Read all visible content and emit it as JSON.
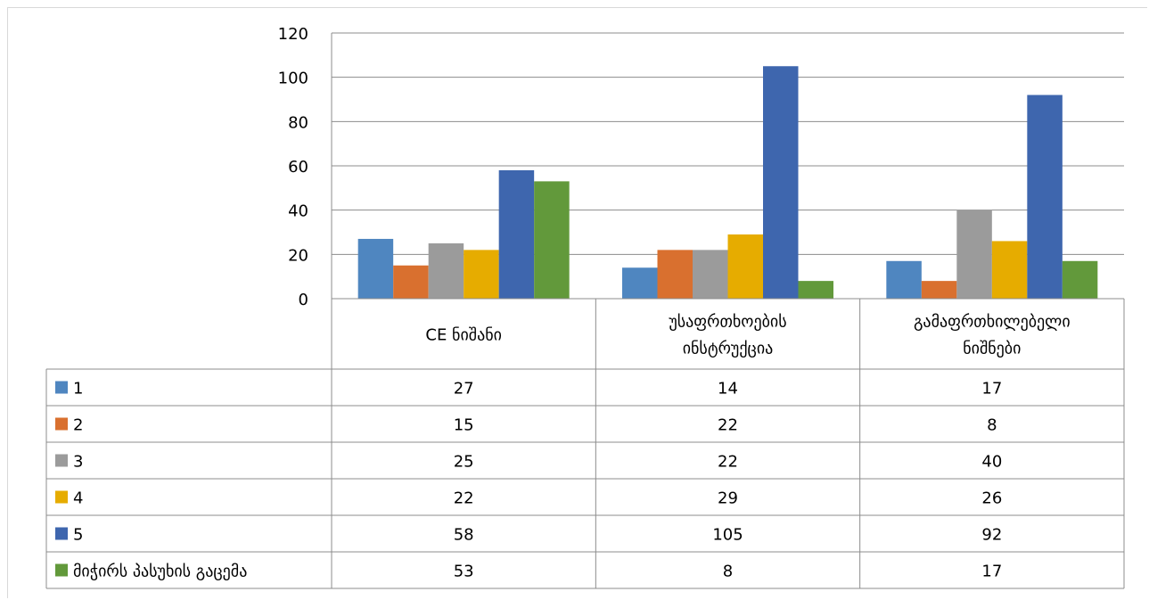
{
  "chart_data": {
    "type": "bar",
    "categories": [
      [
        "CE ნიშანი"
      ],
      [
        "უსაფრთხოების",
        "ინსტრუქცია"
      ],
      [
        "გამაფრთხილებელი",
        "ნიშნები"
      ]
    ],
    "series": [
      {
        "name": "1",
        "color": "#4f86c0",
        "values": [
          27,
          14,
          17
        ]
      },
      {
        "name": "2",
        "color": "#d9702f",
        "values": [
          15,
          22,
          8
        ]
      },
      {
        "name": "3",
        "color": "#9b9b9b",
        "values": [
          25,
          22,
          40
        ]
      },
      {
        "name": "4",
        "color": "#e6ac00",
        "values": [
          22,
          29,
          26
        ]
      },
      {
        "name": "5",
        "color": "#3e66ae",
        "values": [
          58,
          105,
          92
        ]
      },
      {
        "name": "მიჭირს პასუხის გაცემა",
        "color": "#62993b",
        "values": [
          53,
          8,
          17
        ]
      }
    ],
    "yticks": [
      "0",
      "20",
      "40",
      "60",
      "80",
      "100",
      "120"
    ],
    "ylim": [
      0,
      120
    ],
    "grid": true,
    "legend": "data-table"
  }
}
